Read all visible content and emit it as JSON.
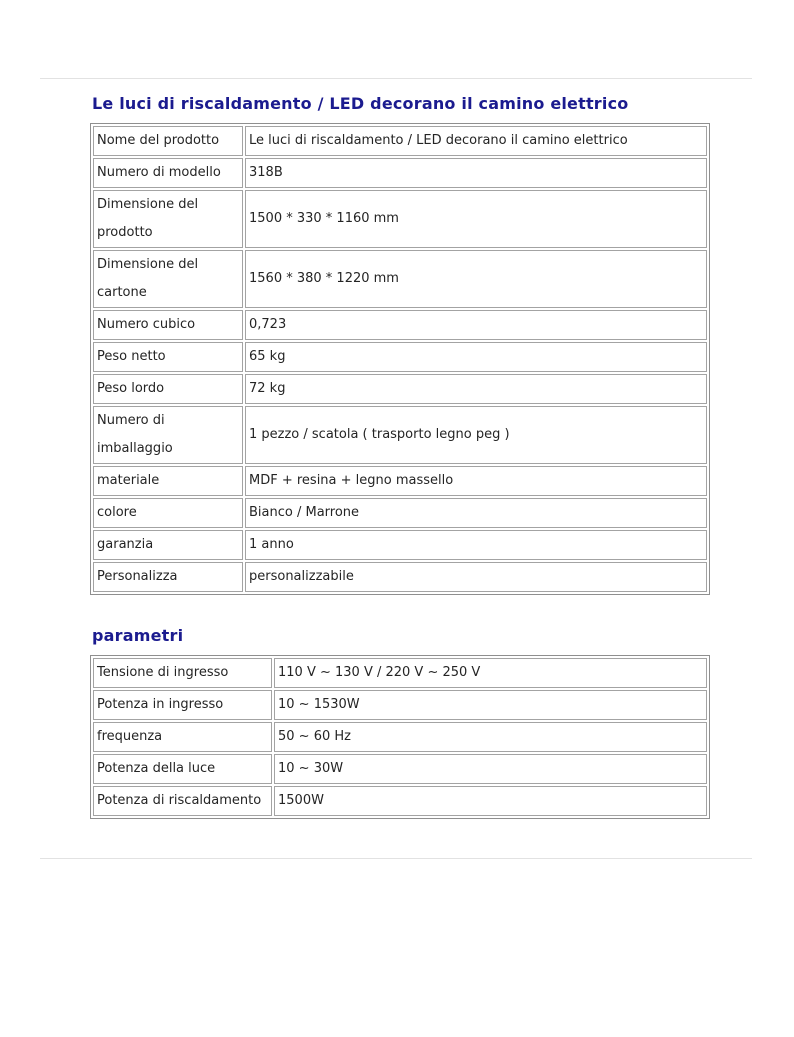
{
  "colors": {
    "title_text": "#1b1b8f",
    "table_outer_border": "#8f8f8f",
    "cell_border": "#a3a3a3",
    "body_text": "#242424",
    "separator_line": "#e2e2e2"
  },
  "sections": {
    "product": {
      "title": "Le luci di riscaldamento / LED decorano il camino elettrico",
      "rows": [
        {
          "label": "Nome del prodotto",
          "value": "Le luci di riscaldamento / LED decorano il camino elettrico"
        },
        {
          "label": "Numero di modello",
          "value": "318B"
        },
        {
          "label": "Dimensione del prodotto",
          "value": "1500 * 330 * 1160 mm"
        },
        {
          "label": "Dimensione del cartone",
          "value": "1560 * 380 * 1220 mm"
        },
        {
          "label": "Numero cubico",
          "value": "0,723"
        },
        {
          "label": "Peso netto",
          "value": "65 kg"
        },
        {
          "label": "Peso lordo",
          "value": "72 kg"
        },
        {
          "label": "Numero di imballaggio",
          "value": "1 pezzo / scatola ( trasporto legno peg )"
        },
        {
          "label": "materiale",
          "value": "MDF + resina + legno massello"
        },
        {
          "label": "colore",
          "value": "Bianco / Marrone"
        },
        {
          "label": "garanzia",
          "value": "1 anno"
        },
        {
          "label": "Personalizza",
          "value": "personalizzabile"
        }
      ]
    },
    "parameters": {
      "title": "parametri",
      "rows": [
        {
          "label": "Tensione di ingresso",
          "value": "110 V ~ 130 V / 220 V ~ 250 V"
        },
        {
          "label": "Potenza in ingresso",
          "value": "10 ~ 1530W"
        },
        {
          "label": "frequenza",
          "value": "50 ~ 60 Hz"
        },
        {
          "label": "Potenza della luce",
          "value": "10 ~ 30W"
        },
        {
          "label": "Potenza di riscaldamento",
          "value": "1500W"
        }
      ]
    }
  }
}
